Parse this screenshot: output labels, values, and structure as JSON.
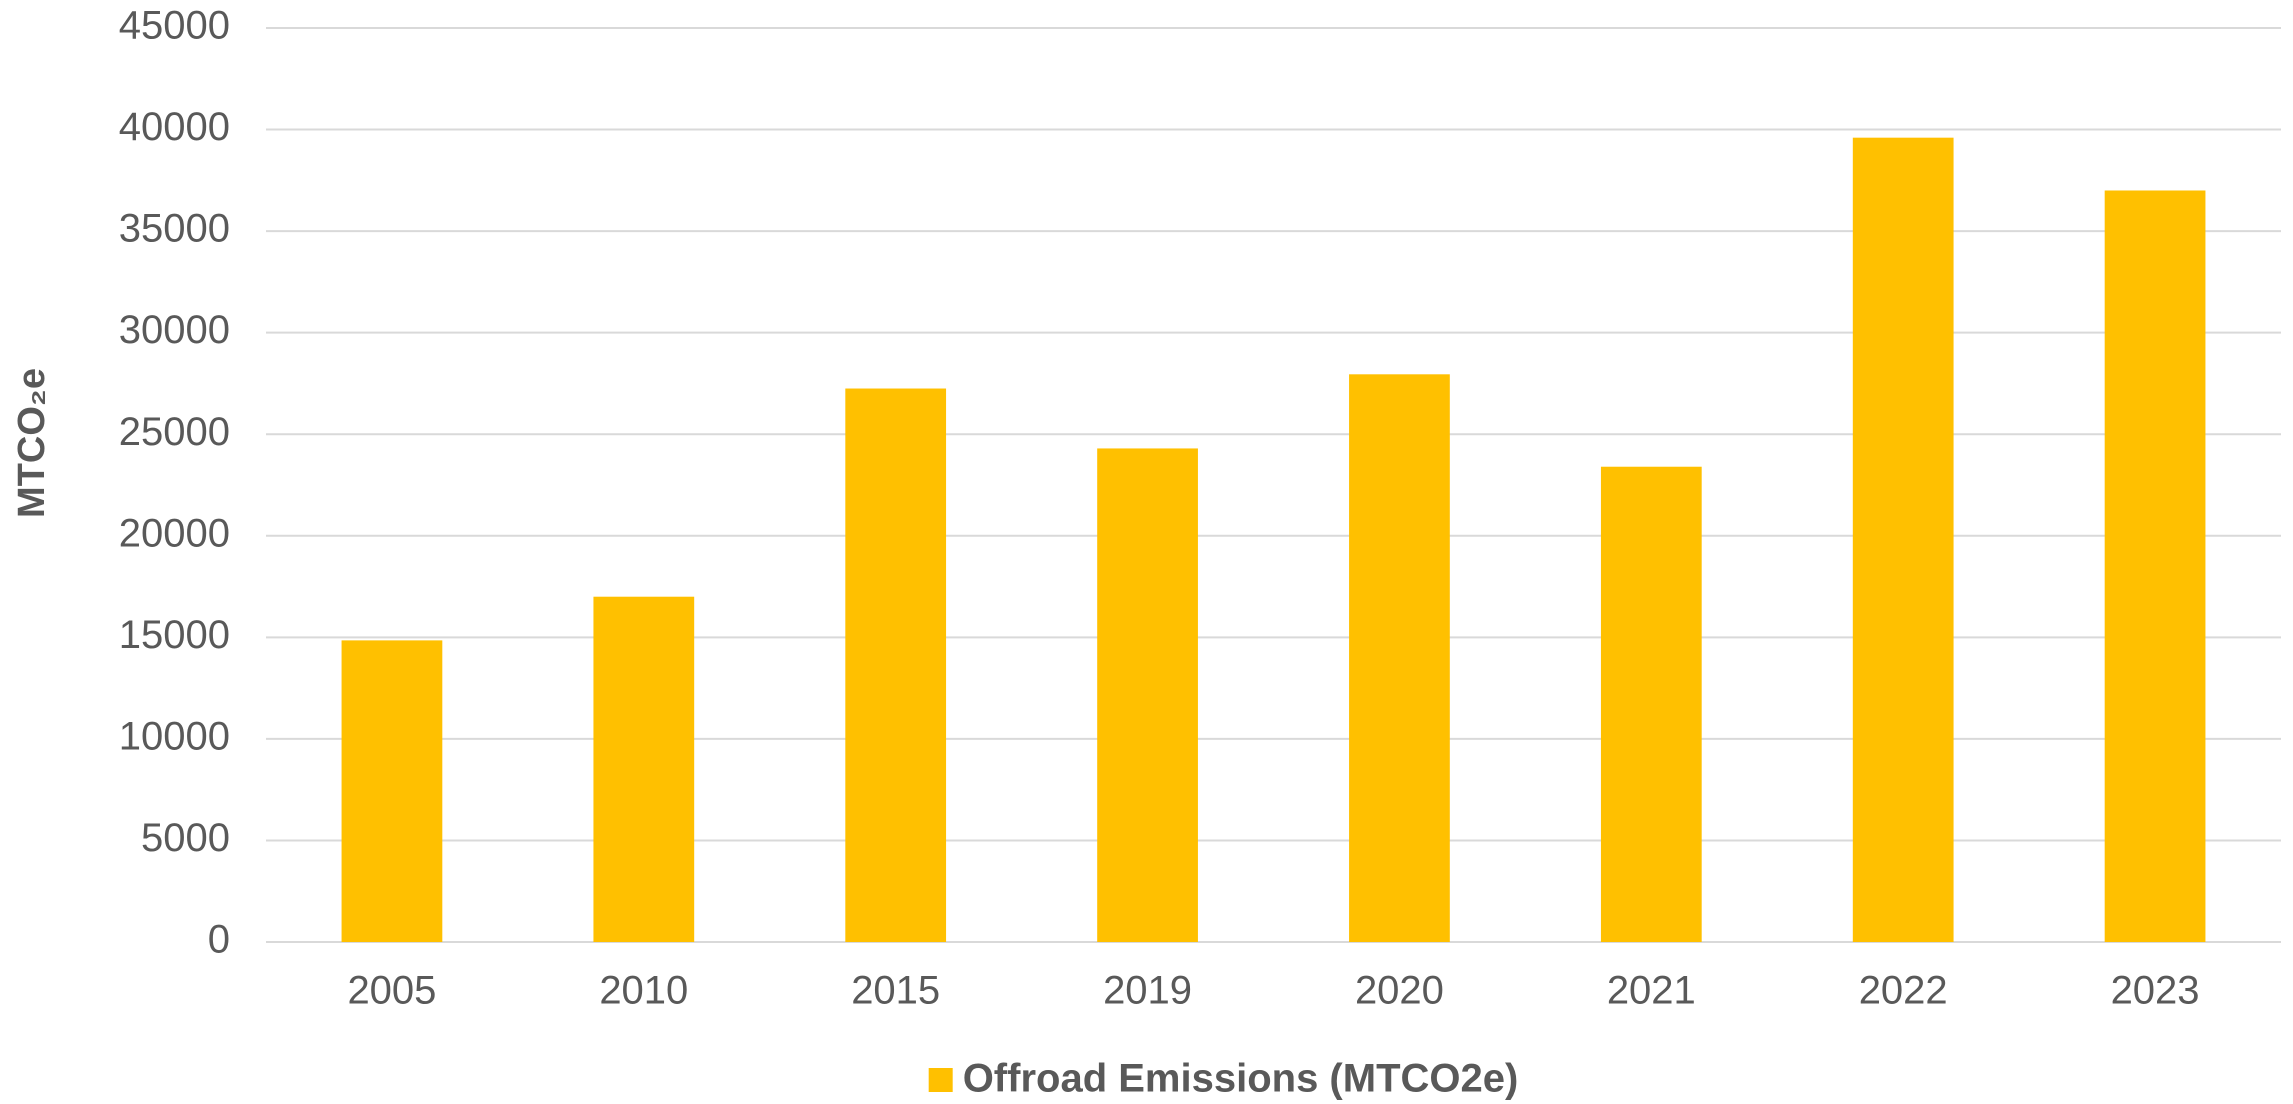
{
  "chart_data": {
    "type": "bar",
    "y_label": "MTCO₂e",
    "categories": [
      "2005",
      "2010",
      "2015",
      "2019",
      "2020",
      "2021",
      "2022",
      "2023"
    ],
    "series": [
      {
        "name": "Offroad Emissions (MTCO2e)",
        "color": "#ffc000",
        "values": [
          14850,
          17000,
          27250,
          24300,
          27950,
          23400,
          39600,
          37000
        ]
      }
    ],
    "ylim": [
      0,
      45000
    ],
    "yticks": [
      0,
      5000,
      10000,
      15000,
      20000,
      25000,
      30000,
      35000,
      40000,
      45000
    ],
    "grid": true,
    "legend": "bottom"
  }
}
